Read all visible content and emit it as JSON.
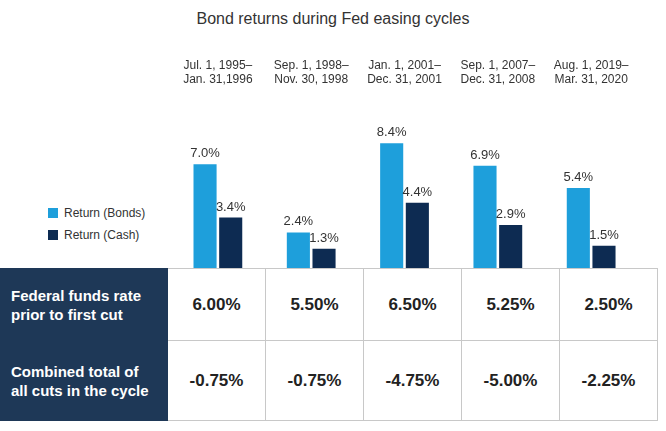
{
  "chart_data": {
    "type": "bar",
    "title": "Bond returns during Fed easing cycles",
    "categories": [
      "Jul. 1, 1995–\nJan. 31,1996",
      "Sep. 1, 1998–\nNov. 30, 1998",
      "Jan. 1, 2001–\nDec. 31, 2001",
      "Sep. 1, 2007–\nDec. 31, 2008",
      "Aug. 1, 2019–\nMar. 31, 2020"
    ],
    "series": [
      {
        "name": "Return (Bonds)",
        "color": "#1e9fdb",
        "values": [
          7.0,
          2.4,
          8.4,
          6.9,
          5.4
        ],
        "value_labels": [
          "7.0%",
          "2.4%",
          "8.4%",
          "6.9%",
          "5.4%"
        ]
      },
      {
        "name": "Return (Cash)",
        "color": "#0d2b52",
        "values": [
          3.4,
          1.3,
          4.4,
          2.9,
          1.5
        ],
        "value_labels": [
          "3.4%",
          "1.3%",
          "4.4%",
          "2.9%",
          "1.5%"
        ]
      }
    ],
    "ylim": [
      0,
      11
    ],
    "grid": false,
    "legend": "left",
    "data_labels": true,
    "tick_labels": "x"
  },
  "table": {
    "rows": [
      {
        "header": "Federal funds rate prior to first cut",
        "cells": [
          "6.00%",
          "5.50%",
          "6.50%",
          "5.25%",
          "2.50%"
        ]
      },
      {
        "header": "Combined total of all cuts in the cycle",
        "cells": [
          "-0.75%",
          "-0.75%",
          "-4.75%",
          "-5.00%",
          "-2.25%"
        ]
      }
    ]
  }
}
